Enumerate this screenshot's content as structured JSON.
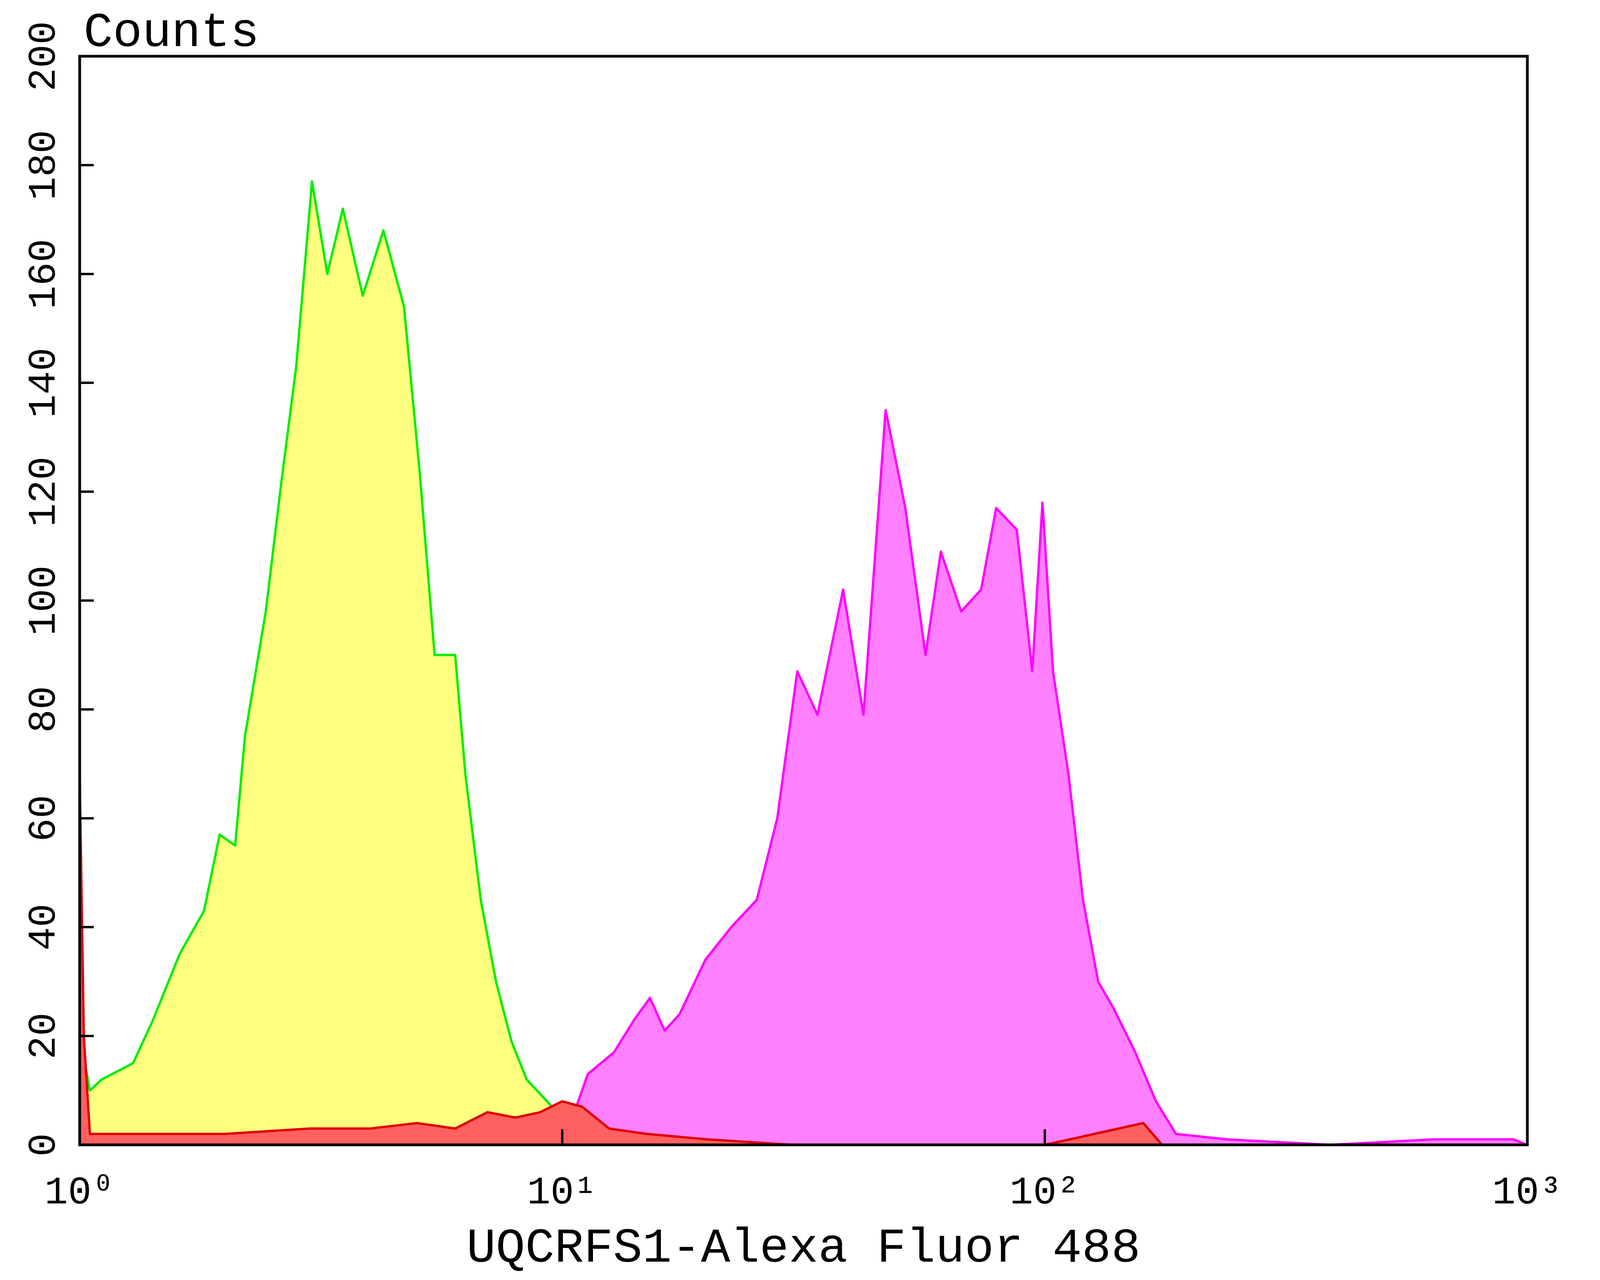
{
  "chart_data": {
    "type": "area",
    "y_label": "Counts",
    "x_label": "UQCRFS1-Alexa Fluor 488",
    "log": "x",
    "xlim": [
      1,
      1000
    ],
    "ylim": [
      0,
      200
    ],
    "xticks": [
      {
        "value": 1,
        "label": "10⁰"
      },
      {
        "value": 10,
        "label": "10¹"
      },
      {
        "value": 100,
        "label": "10²"
      },
      {
        "value": 1000,
        "label": "10³"
      }
    ],
    "yticks": [
      0,
      20,
      40,
      60,
      80,
      100,
      120,
      140,
      160,
      180,
      200
    ],
    "grid": false,
    "series": [
      {
        "color": "#ffff80",
        "x": [
          1.0,
          1.05,
          1.11,
          1.29,
          1.42,
          1.61,
          1.81,
          1.95,
          2.1,
          2.2,
          2.43,
          2.62,
          2.81,
          3.03,
          3.26,
          3.51,
          3.86,
          4.26,
          4.7,
          5.06,
          5.44,
          6.0,
          6.3,
          6.78,
          7.29,
          7.85,
          8.44,
          9.53,
          10.5,
          12.8,
          20.8,
          34,
          1000
        ],
        "values": [
          20,
          10,
          12,
          15,
          23,
          35,
          43,
          57,
          55,
          75,
          98,
          122,
          143,
          177,
          160,
          172,
          156,
          168,
          154,
          124,
          90,
          90,
          68,
          45,
          30,
          19,
          12,
          7,
          4,
          2,
          1,
          0,
          0
        ]
      },
      {
        "color": "#ff80ff",
        "x": [
          1.0,
          10.0,
          10.5,
          11.3,
          12.8,
          14.1,
          15.2,
          16.3,
          17.5,
          19.8,
          22.4,
          25.3,
          27.9,
          30.7,
          33.8,
          38.2,
          42.1,
          46.8,
          51.4,
          56.6,
          60.9,
          67.1,
          73.8,
          79.3,
          87.5,
          94.2,
          98.9,
          104,
          112,
          120,
          129,
          139,
          154,
          170,
          187,
          239,
          389,
          638,
          936,
          1000
        ],
        "values": [
          0,
          0,
          5,
          13,
          17,
          23,
          27,
          21,
          24,
          34,
          40,
          45,
          60,
          87,
          79,
          102,
          79,
          135,
          117,
          90,
          109,
          98,
          102,
          117,
          113,
          87,
          118,
          87,
          68,
          45,
          30,
          25,
          17,
          8,
          2,
          1,
          0,
          1,
          1,
          0
        ]
      },
      {
        "color": "#ff6060",
        "x": [
          1.0,
          1.02,
          1.05,
          2,
          3,
          4,
          5,
          6,
          7,
          8,
          9,
          10,
          11,
          12.5,
          15,
          20,
          30,
          100,
          160,
          175,
          1000
        ],
        "values": [
          68,
          20,
          2,
          2,
          3,
          3,
          4,
          3,
          6,
          5,
          6,
          8,
          7,
          3,
          2,
          1,
          0,
          0,
          4,
          0,
          0
        ]
      }
    ]
  }
}
